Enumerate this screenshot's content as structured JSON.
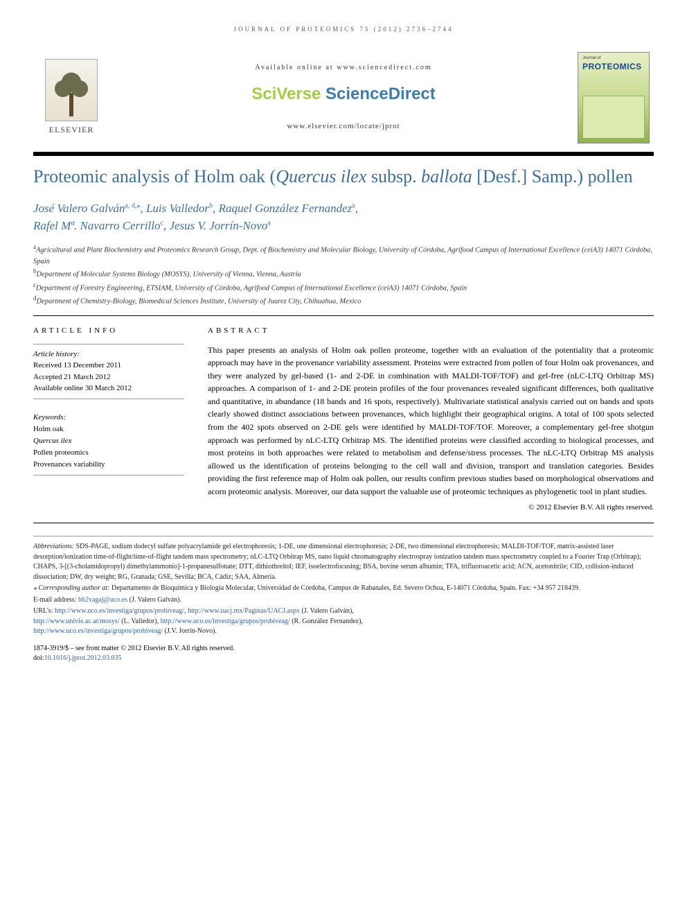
{
  "running_head": "JOURNAL OF PROTEOMICS 75 (2012) 2736–2744",
  "masthead": {
    "available_online": "Available online at www.sciencedirect.com",
    "brand_sv": "SciVerse ",
    "brand_sd": "ScienceDirect",
    "locate_url": "www.elsevier.com/locate/jprot",
    "elsevier_word": "ELSEVIER",
    "cover_top": "Journal of",
    "cover_title": "PROTEOMICS"
  },
  "title": {
    "pre": "Proteomic analysis of Holm oak (",
    "species1": "Quercus ilex",
    "mid": " subsp. ",
    "species2": "ballota",
    "post": " [Desf.] Samp.) pollen"
  },
  "authors_html_parts": {
    "a1": "José Valero Galván",
    "a1_sup": "a, d,",
    "star": "⁎",
    "sep": ", ",
    "a2": "Luis Valledor",
    "a2_sup": "b",
    "a3": "Raquel González Fernandez",
    "a3_sup": "a",
    "a4": "Rafel Mª. Navarro Cerrillo",
    "a4_sup": "c",
    "a5": "Jesus V. Jorrín-Novo",
    "a5_sup": "a"
  },
  "affiliations": {
    "a": "Agricultural and Plant Biochemistry and Proteomics Research Group, Dept. of Biochemistry and Molecular Biology, University of Córdoba, Agrifood Campus of International Excellence (ceiA3) 14071 Córdoba, Spain",
    "b": "Department of Molecular Systems Biology (MOSYS), University of Vienna, Vienna, Austria",
    "c": "Department of Forestry Engineering, ETSIAM, University of Córdoba, Agrifood Campus of International Excellence (ceiA3) 14071 Córdoba, Spain",
    "d": "Department of Chemistry-Biology, Biomedical Sciences Institute, University of Juarez City, Chihuahua, Mexico"
  },
  "article_info": {
    "heading": "ARTICLE INFO",
    "history_label": "Article history:",
    "received": "Received 13 December 2011",
    "accepted": "Accepted 21 March 2012",
    "online": "Available online 30 March 2012",
    "keywords_label": "Keywords:",
    "kw1": "Holm oak",
    "kw2_ital": "Quercus ilex",
    "kw3": "Pollen proteomics",
    "kw4": "Provenances variability"
  },
  "abstract": {
    "heading": "ABSTRACT",
    "body": "This paper presents an analysis of Holm oak pollen proteome, together with an evaluation of the potentiality that a proteomic approach may have in the provenance variability assessment. Proteins were extracted from pollen of four Holm oak provenances, and they were analyzed by gel-based (1- and 2-DE in combination with MALDI-TOF/TOF) and gel-free (nLC-LTQ Orbitrap MS) approaches. A comparison of 1- and 2-DE protein profiles of the four provenances revealed significant differences, both qualitative and quantitative, in abundance (18 bands and 16 spots, respectively). Multivariate statistical analysis carried out on bands and spots clearly showed distinct associations between provenances, which highlight their geographical origins. A total of 100 spots selected from the 402 spots observed on 2-DE gels were identified by MALDI-TOF/TOF. Moreover, a complementary gel-free shotgun approach was performed by nLC-LTQ Orbitrap MS. The identified proteins were classified according to biological processes, and most proteins in both approaches were related to metabolism and defense/stress processes. The nLC-LTQ Orbitrap MS analysis allowed us the identification of proteins belonging to the cell wall and division, transport and translation categories. Besides providing the first reference map of Holm oak pollen, our results confirm previous studies based on morphological observations and acorn proteomic analysis. Moreover, our data support the valuable use of proteomic techniques as phylogenetic tool in plant studies.",
    "copyright": "© 2012 Elsevier B.V. All rights reserved."
  },
  "footnotes": {
    "abbrev_label": "Abbreviations:",
    "abbrev": " SDS-PAGE, sodium dodecyl sulfate polyacrylamide gel electrophoresis; 1-DE, one dimensional electrophoresis; 2-DE, two dimensional electrophoresis; MALDI-TOF/TOF, matrix-assisted laser desorption/ionization time-of-flight/time-of-flight tandem mass spectrometry; nLC-LTQ Orbitrap MS, nano liquid chromatography electrospray ionization tandem mass spectrometry coupled to a Fourier Trap (Orbitrap); CHAPS, 3-[(3-cholamidopropyl) dimethylammonio]-1-propanesulfonate; DTT, dithiothreitol; IEF, isoelectrofocusing; BSA, bovine serum albumin; TFA, trifluoroacetic acid; ACN, acetonitrile; CID, collision-induced dissociation; DW, dry weight; RG, Granada; GSE, Sevilla; BCA, Cádiz; SAA, Almería.",
    "corr_label": "⁎ Corresponding author at:",
    "corr": " Departamento de Bioquímica y Biología Molecular, Universidad de Córdoba, Campus de Rabanales, Ed. Severo Ochoa, E-14071 Córdoba, Spain. Fax: +34 957 218439.",
    "email_label": "E-mail address: ",
    "email": "bb2vagaj@uco.es",
    "email_who": " (J. Valero Galván).",
    "urls_label": "URL's: ",
    "url1": "http://www.uco.es/investiga/grupos/probiveag/",
    "url1_who": ", ",
    "url2": "http://www.uacj.mx/Paginas/UACJ.aspx",
    "url2_who": " (J. Valero Galván),",
    "url3": "http://www.univie.ac.at/mosys/",
    "url3_who": " (L. Valledor), ",
    "url4": "http://www.uco.es/investiga/grupos/probiveag/",
    "url4_who": " (R. González Fernandez),",
    "url5": "http://www.uco.es/investiga/grupos/probiveag/",
    "url5_who": " (J.V. Jorrín-Novo)."
  },
  "front_matter": {
    "line1": "1874-3919/$ – see front matter © 2012 Elsevier B.V. All rights reserved.",
    "doi_label": "doi:",
    "doi": "10.1016/j.jprot.2012.03.035"
  },
  "colors": {
    "title_blue": "#3b6fa3",
    "link_blue": "#2a5fb0",
    "sv_green": "#9fcf3f",
    "sd_blue": "#3b7db0"
  }
}
